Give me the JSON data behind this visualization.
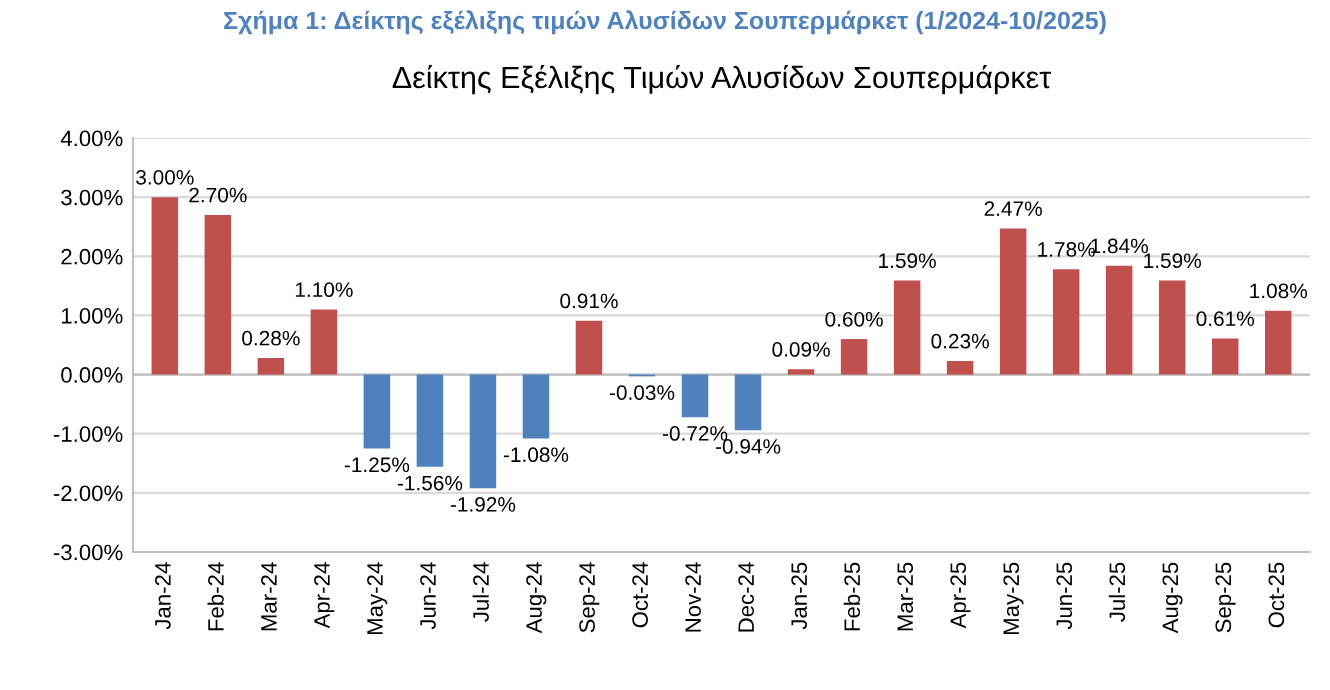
{
  "chart_data": {
    "type": "bar",
    "title": "Δείκτης Εξέλιξης Τιμών Αλυσίδων Σουπερμάρκετ",
    "annotations": [
      "Σχήμα 1: Δείκτης εξέλιξης τιμών Αλυσίδων Σουπερμάρκετ (1/2024-10/2025)"
    ],
    "categories": [
      "Jan-24",
      "Feb-24",
      "Mar-24",
      "Apr-24",
      "May-24",
      "Jun-24",
      "Jul-24",
      "Aug-24",
      "Sep-24",
      "Oct-24",
      "Nov-24",
      "Dec-24",
      "Jan-25",
      "Feb-25",
      "Mar-25",
      "Apr-25",
      "May-25",
      "Jun-25",
      "Jul-25",
      "Aug-25",
      "Sep-25",
      "Oct-25"
    ],
    "values": [
      3.0,
      2.7,
      0.28,
      1.1,
      -1.25,
      -1.56,
      -1.92,
      -1.08,
      0.91,
      -0.03,
      -0.72,
      -0.94,
      0.09,
      0.6,
      1.59,
      0.23,
      2.47,
      1.78,
      1.84,
      1.59,
      0.61,
      1.08
    ],
    "value_labels": [
      "3.00%",
      "2.70%",
      "0.28%",
      "1.10%",
      "-1.25%",
      "-1.56%",
      "-1.92%",
      "-1.08%",
      "0.91%",
      "-0.03%",
      "-0.72%",
      "-0.94%",
      "0.09%",
      "0.60%",
      "1.59%",
      "0.23%",
      "2.47%",
      "1.78%",
      "1.84%",
      "1.59%",
      "0.61%",
      "1.08%"
    ],
    "colors": [
      "#c0504d",
      "#c0504d",
      "#c0504d",
      "#c0504d",
      "#4f81bd",
      "#4f81bd",
      "#4f81bd",
      "#4f81bd",
      "#c0504d",
      "#4f81bd",
      "#4f81bd",
      "#4f81bd",
      "#c0504d",
      "#c0504d",
      "#c0504d",
      "#c0504d",
      "#c0504d",
      "#c0504d",
      "#c0504d",
      "#c0504d",
      "#c0504d",
      "#c0504d"
    ],
    "ylim": [
      -3,
      4
    ],
    "yticks": [
      {
        "value": -3,
        "label": "-3.00%"
      },
      {
        "value": -2,
        "label": "-2.00%"
      },
      {
        "value": -1,
        "label": "-1.00%"
      },
      {
        "value": 0,
        "label": "0.00%"
      },
      {
        "value": 1,
        "label": "1.00%"
      },
      {
        "value": 2,
        "label": "2.00%"
      },
      {
        "value": 3,
        "label": "3.00%"
      },
      {
        "value": 4,
        "label": "4.00%"
      }
    ],
    "grid": "y"
  }
}
